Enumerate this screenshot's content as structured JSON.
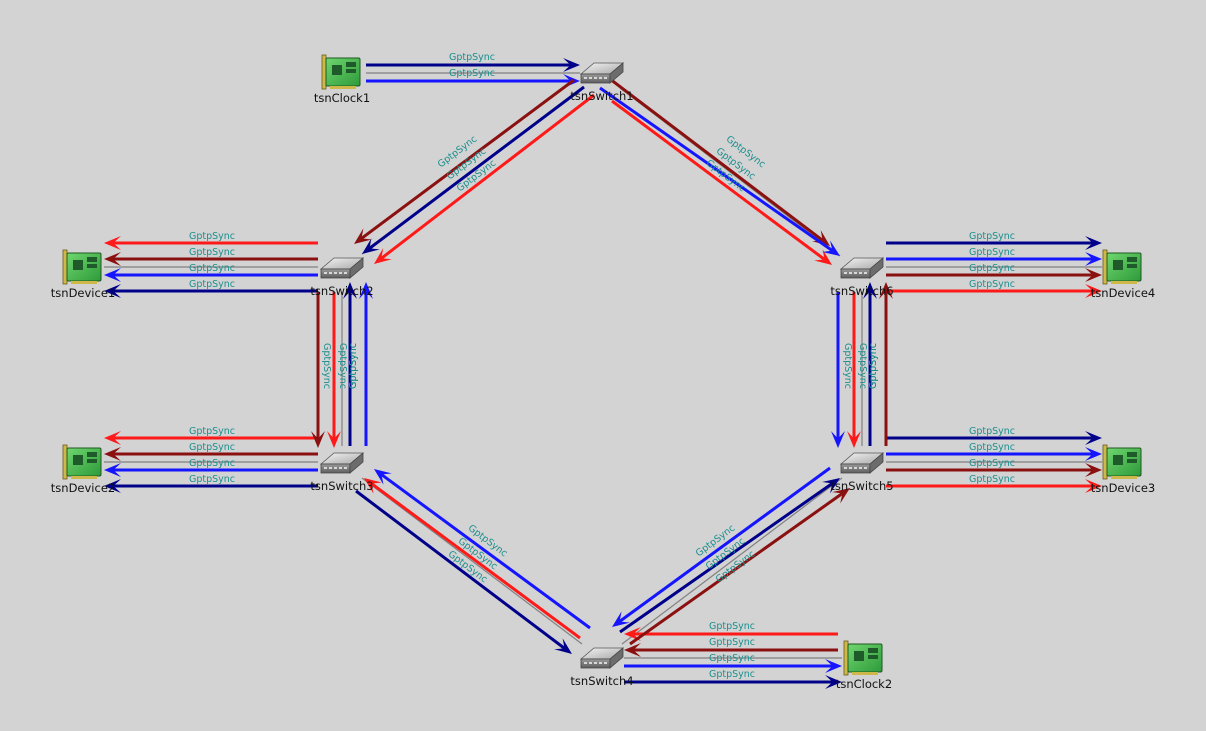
{
  "colors": {
    "background": "#d3d3d3",
    "navy": "#00008b",
    "blue": "#1515ff",
    "red": "#ff1a1a",
    "darkred": "#8b1010",
    "gray": "#808080",
    "label": "#1a8f8f",
    "nic_board": "#4cbb4c",
    "nic_chip": "#1f5a2a",
    "nic_bracket": "#cfb84a"
  },
  "message_label": "GptpSync",
  "nodes": [
    {
      "id": "tsnClock1",
      "label": "tsnClock1",
      "kind": "nic-icon"
    },
    {
      "id": "tsnClock2",
      "label": "tsnClock2",
      "kind": "nic-icon"
    },
    {
      "id": "tsnDevice1",
      "label": "tsnDevice1",
      "kind": "nic-icon"
    },
    {
      "id": "tsnDevice2",
      "label": "tsnDevice2",
      "kind": "nic-icon"
    },
    {
      "id": "tsnDevice3",
      "label": "tsnDevice3",
      "kind": "nic-icon"
    },
    {
      "id": "tsnDevice4",
      "label": "tsnDevice4",
      "kind": "nic-icon"
    },
    {
      "id": "tsnSwitch1",
      "label": "tsnSwitch1",
      "kind": "switch-icon"
    },
    {
      "id": "tsnSwitch2",
      "label": "tsnSwitch2",
      "kind": "switch-icon"
    },
    {
      "id": "tsnSwitch3",
      "label": "tsnSwitch3",
      "kind": "switch-icon"
    },
    {
      "id": "tsnSwitch4",
      "label": "tsnSwitch4",
      "kind": "switch-icon"
    },
    {
      "id": "tsnSwitch5",
      "label": "tsnSwitch5",
      "kind": "switch-icon"
    },
    {
      "id": "tsnSwitch6",
      "label": "tsnSwitch6",
      "kind": "switch-icon"
    }
  ],
  "links": [
    {
      "from": "tsnClock1",
      "to": "tsnSwitch1",
      "messages": [
        {
          "text": "GptpSync",
          "color": "navy"
        },
        {
          "text": "GptpSync",
          "color": "blue"
        }
      ]
    },
    {
      "from": "tsnClock2",
      "to": "tsnSwitch4",
      "messages": [
        {
          "text": "GptpSync",
          "color": "red"
        },
        {
          "text": "GptpSync",
          "color": "darkred"
        }
      ]
    },
    {
      "from": "tsnSwitch4",
      "to": "tsnClock2",
      "messages": [
        {
          "text": "GptpSync",
          "color": "blue"
        },
        {
          "text": "GptpSync",
          "color": "navy"
        }
      ]
    },
    {
      "from": "tsnSwitch1",
      "to": "tsnSwitch2",
      "messages": [
        {
          "text": "GptpSync",
          "color": "darkred"
        },
        {
          "text": "GptpSync",
          "color": "navy"
        },
        {
          "text": "GptpSync",
          "color": "red"
        }
      ]
    },
    {
      "from": "tsnSwitch1",
      "to": "tsnSwitch6",
      "messages": [
        {
          "text": "GptpSync",
          "color": "darkred"
        },
        {
          "text": "GptpSync",
          "color": "blue"
        },
        {
          "text": "GptpSync",
          "color": "red"
        }
      ]
    },
    {
      "from": "tsnSwitch2",
      "to": "tsnDevice1",
      "messages": [
        {
          "text": "GptpSync",
          "color": "red"
        },
        {
          "text": "GptpSync",
          "color": "darkred"
        },
        {
          "text": "GptpSync",
          "color": "blue"
        },
        {
          "text": "GptpSync",
          "color": "navy"
        }
      ]
    },
    {
      "from": "tsnSwitch3",
      "to": "tsnDevice2",
      "messages": [
        {
          "text": "GptpSync",
          "color": "red"
        },
        {
          "text": "GptpSync",
          "color": "darkred"
        },
        {
          "text": "GptpSync",
          "color": "blue"
        },
        {
          "text": "GptpSync",
          "color": "navy"
        }
      ]
    },
    {
      "from": "tsnSwitch6",
      "to": "tsnDevice4",
      "messages": [
        {
          "text": "GptpSync",
          "color": "navy"
        },
        {
          "text": "GptpSync",
          "color": "blue"
        },
        {
          "text": "GptpSync",
          "color": "darkred"
        },
        {
          "text": "GptpSync",
          "color": "red"
        }
      ]
    },
    {
      "from": "tsnSwitch5",
      "to": "tsnDevice3",
      "messages": [
        {
          "text": "GptpSync",
          "color": "navy"
        },
        {
          "text": "GptpSync",
          "color": "blue"
        },
        {
          "text": "GptpSync",
          "color": "darkred"
        },
        {
          "text": "GptpSync",
          "color": "red"
        }
      ]
    },
    {
      "from": "tsnSwitch2",
      "to": "tsnSwitch3",
      "messages": [
        {
          "text": "GptpSync",
          "color": "darkred"
        },
        {
          "text": "GptpSync",
          "color": "navy"
        },
        {
          "text": "GptpSync",
          "color": "red"
        },
        {
          "text": "GptpSync",
          "color": "blue"
        }
      ]
    },
    {
      "from": "tsnSwitch6",
      "to": "tsnSwitch5",
      "messages": [
        {
          "text": "GptpSync",
          "color": "blue"
        },
        {
          "text": "GptpSync",
          "color": "red"
        },
        {
          "text": "GptpSync",
          "color": "navy"
        },
        {
          "text": "GptpSync",
          "color": "darkred"
        }
      ]
    },
    {
      "from": "tsnSwitch4",
      "to": "tsnSwitch3",
      "messages": [
        {
          "text": "GptpSync",
          "color": "blue"
        },
        {
          "text": "GptpSync",
          "color": "red"
        },
        {
          "text": "GptpSync",
          "color": "navy"
        }
      ]
    },
    {
      "from": "tsnSwitch4",
      "to": "tsnSwitch5",
      "messages": [
        {
          "text": "GptpSync",
          "color": "blue"
        },
        {
          "text": "GptpSync",
          "color": "navy"
        },
        {
          "text": "GptpSync",
          "color": "darkred"
        }
      ]
    }
  ]
}
